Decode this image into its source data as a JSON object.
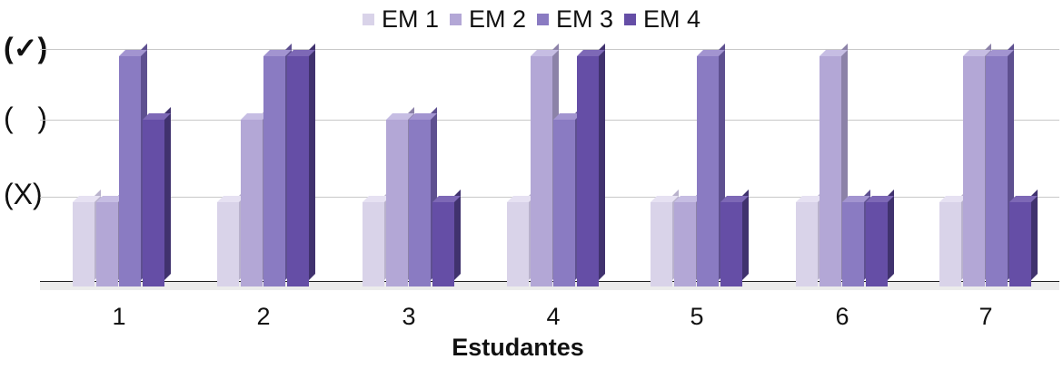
{
  "chart_data": {
    "type": "bar",
    "title": "",
    "xlabel": "Estudantes",
    "ylabel": "",
    "categories": [
      "1",
      "2",
      "3",
      "4",
      "5",
      "6",
      "7"
    ],
    "y_tick_labels": [
      "(X)",
      "(   )",
      "(✓)"
    ],
    "y_levels": [
      1,
      2,
      3
    ],
    "ylim": [
      0,
      3
    ],
    "grid": true,
    "legend_position": "top",
    "series": [
      {
        "name": "EM 1",
        "color": "#d9d3e9",
        "values": [
          1,
          1,
          1,
          1,
          1,
          1,
          1
        ]
      },
      {
        "name": "EM 2",
        "color": "#b3a7d6",
        "values": [
          1,
          2,
          2,
          3,
          1,
          3,
          3
        ]
      },
      {
        "name": "EM 3",
        "color": "#8a7bc2",
        "values": [
          3,
          3,
          2,
          2,
          3,
          1,
          3
        ]
      },
      {
        "name": "EM 4",
        "color": "#654ea6",
        "values": [
          2,
          3,
          1,
          3,
          1,
          1,
          1
        ]
      }
    ]
  },
  "legend": [
    {
      "label": "EM 1",
      "color": "#d9d3e9"
    },
    {
      "label": "EM 2",
      "color": "#b3a7d6"
    },
    {
      "label": "EM 3",
      "color": "#8a7bc2"
    },
    {
      "label": "EM 4",
      "color": "#654ea6"
    }
  ],
  "y_axis": {
    "check": "(✓)",
    "blank": "(   )",
    "cross": "(X)"
  },
  "x_axis": {
    "label": "Estudantes",
    "ticks": [
      "1",
      "2",
      "3",
      "4",
      "5",
      "6",
      "7"
    ]
  }
}
